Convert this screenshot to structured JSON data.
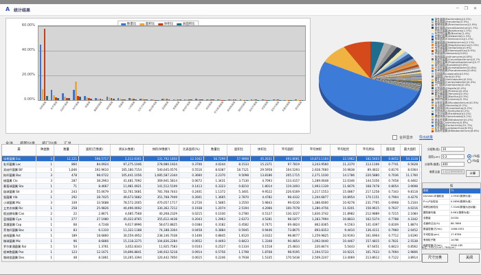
{
  "window": {
    "title": "统计结果",
    "logo": "A",
    "controls": {
      "minimize": "─",
      "maximize": "❐",
      "close": "✕"
    }
  },
  "toolbar": {
    "items": [
      "全选",
      "按图分类",
      "按门分类",
      "汇总"
    ],
    "checkbox_label": "合并显示",
    "export_link": "导出结果"
  },
  "chart_data": [
    {
      "type": "bar",
      "title": "",
      "ylabel": "",
      "ylim": [
        0,
        60
      ],
      "yticks": [
        "60.00%",
        "40.00%",
        "20.00%",
        "0.00%"
      ],
      "legend_position": "top",
      "categories": [
        "埃希菌属",
        "乳杆菌属",
        "双歧杆菌属",
        "拟杆菌属",
        "梭菌属",
        "葡萄球菌属",
        "链球菌属",
        "弧菌属",
        "小球菌属",
        "立克次体属",
        "假丝酵母属",
        "蓝细菌属",
        "荚膜菌属",
        "芽孢杆菌属",
        "放线菌属",
        "微球菌属",
        "罗尔斯通菌属",
        "假单胞菌属",
        "脱硫弧菌属",
        "硝化杆菌属",
        "奈瑟菌属",
        "变形杆菌属",
        "克雷伯菌属",
        "肠球菌属"
      ],
      "series": [
        {
          "name": "数量比",
          "color": "#4472c4",
          "values": [
            45.0,
            8.2,
            5.6,
            8.6,
            3.2,
            1.5,
            2.6,
            1.4,
            1.6,
            1.2,
            0.4,
            1.3,
            0.5,
            0.6,
            0.9,
            0.5,
            0.3,
            0.6,
            0.3,
            0.5,
            0.3,
            0.4,
            0.2,
            0.3
          ]
        },
        {
          "name": "面积比",
          "color": "#f0a830",
          "values": [
            8.9,
            4.1,
            2.9,
            15.2,
            2.4,
            1.1,
            2.2,
            1.0,
            1.3,
            0.9,
            0.3,
            1.1,
            0.4,
            0.5,
            0.8,
            0.4,
            0.3,
            0.5,
            0.2,
            0.4,
            0.3,
            0.3,
            0.2,
            0.2
          ]
        },
        {
          "name": "体积比",
          "color": "#c43e1c",
          "values": [
            57.9,
            2.2,
            1.8,
            3.4,
            1.5,
            0.9,
            1.6,
            0.8,
            1.0,
            0.7,
            0.2,
            0.9,
            0.3,
            0.4,
            0.6,
            0.3,
            0.2,
            0.4,
            0.2,
            0.3,
            0.2,
            0.3,
            0.1,
            0.2
          ]
        },
        {
          "name": "表面积比",
          "color": "#17748c",
          "values": [
            3.2,
            1.8,
            1.4,
            2.6,
            1.2,
            0.7,
            1.3,
            0.7,
            0.8,
            0.6,
            0.2,
            0.7,
            0.3,
            0.3,
            0.5,
            0.3,
            0.2,
            0.3,
            0.1,
            0.2,
            0.2,
            0.2,
            0.1,
            0.2
          ]
        }
      ]
    },
    {
      "type": "pie",
      "title": "",
      "legend_position": "right",
      "slices": [
        {
          "label": "拟杆菌属(Bacteroides)(4.3%)",
          "value": 4.3,
          "color": "#1f6d8c"
        },
        {
          "label": "普氏菌属(Prevotella)(2.5%)",
          "value": 2.5,
          "color": "#b0b0b0"
        },
        {
          "label": "瘤胃球菌属(Ruminococcus)(1.9%)",
          "value": 1.9,
          "color": "#8f8f8f"
        },
        {
          "label": "粪杆菌属(Faecalibacterium)(1.7%)",
          "value": 1.7,
          "color": "#2e3f5c"
        },
        {
          "label": "罗斯氏菌属(Roseburia)(1.5%)",
          "value": 1.5,
          "color": "#f0e6a8"
        },
        {
          "label": "布劳特氏菌属(Blautia)(1.4%)",
          "value": 1.4,
          "color": "#9dc3e6"
        },
        {
          "label": "克雷伯菌属(Klebsiella)(1.3%)",
          "value": 1.3,
          "color": "#3a66a8"
        },
        {
          "label": "肠球菌属(Enterococcus)(1.2%)",
          "value": 1.2,
          "color": "#24477e"
        },
        {
          "label": "链球菌属(Streptococcus)(1.1%)",
          "value": 1.1,
          "color": "#98a4ad"
        },
        {
          "label": "葡萄球菌属(Staphylococcus)(1.0%)",
          "value": 1.0,
          "color": "#e8832a"
        },
        {
          "label": "韦荣球菌属(Veillonella)(0.9%)",
          "value": 0.9,
          "color": "#c9a063"
        },
        {
          "label": "嗜血杆菌属(Haemophilus)(0.9%)",
          "value": 0.9,
          "color": "#b84a17"
        },
        {
          "label": "奈瑟菌属(Neisseria)(0.8%)",
          "value": 0.8,
          "color": "#a0a0a0"
        },
        {
          "label": "放线菌属(Actinomyces)(0.8%)",
          "value": 0.8,
          "color": "#d9d9d9"
        },
        {
          "label": "棒状杆菌属(Corynebacterium)(0.7%)",
          "value": 0.7,
          "color": "#6f6f6f"
        },
        {
          "label": "丙酸杆菌属(Propionibacterium)(0.7%)",
          "value": 0.7,
          "color": "#efd88f"
        },
        {
          "label": "莫拉菌属(Moraxella)(0.6%)",
          "value": 0.6,
          "color": "#8c9bab"
        },
        {
          "label": "不动杆菌属(Acinetobacter)(0.6%)",
          "value": 0.6,
          "color": "#d98f3c"
        },
        {
          "label": "假单胞菌属(Pseudomonas)(0.6%)",
          "value": 0.6,
          "color": "#5b80b2"
        },
        {
          "label": "军团菌属(Legionella)(0.5%)",
          "value": 0.5,
          "color": "#c4c4c4"
        },
        {
          "label": "弧菌属(Vibrio)(0.5%)",
          "value": 0.5,
          "color": "#747c88"
        },
        {
          "label": "螺杆菌属(Helicobacter)(0.5%)",
          "value": 0.5,
          "color": "#e8b84b"
        },
        {
          "label": "弯曲菌属(Campylobacter)(0.4%)",
          "value": 0.4,
          "color": "#4a6e96"
        },
        {
          "label": "沙门菌属(Salmonella)(0.4%)",
          "value": 0.4,
          "color": "#98722f"
        },
        {
          "label": "志贺菌属(Shigella)(0.4%)",
          "value": 0.4,
          "color": "#33567d"
        },
        {
          "label": "变形杆菌属(Proteus)(0.4%)",
          "value": 0.4,
          "color": "#ababab"
        },
        {
          "label": "耶尔森菌属(Yersinia)(0.3%)",
          "value": 0.3,
          "color": "#5e5e5e"
        },
        {
          "label": "芽孢杆菌属(Bacillus)(0.3%)",
          "value": 0.3,
          "color": "#d5d5d5"
        },
        {
          "label": "李斯特菌属(Listeria)(0.3%)",
          "value": 0.3,
          "color": "#8a6d3b"
        },
        {
          "label": "分枝杆菌属(Mycobacterium)(0.3%)",
          "value": 0.3,
          "color": "#6d8fc0"
        },
        {
          "label": "诺卡菌属(Nocardia)(0.2%)",
          "value": 0.2,
          "color": "#e59a4d"
        },
        {
          "label": "支原体属(Mycoplasma)(0.2%)",
          "value": 0.2,
          "color": "#3f7f8c"
        },
        {
          "label": "衣原体属(Chlamydia)(0.2%)",
          "value": 0.2,
          "color": "#bdbdbd"
        },
        {
          "label": "立克次体属(Rickettsia)(0.2%)",
          "value": 0.2,
          "color": "#2b4a6f"
        },
        {
          "label": "螺旋体属(Spirochaeta)(0.2%)",
          "value": 0.2,
          "color": "#d8c27a"
        },
        {
          "label": "硝化杆菌属(Nitrobacter)(0.2%)",
          "value": 0.2,
          "color": "#9b9b9b"
        },
        {
          "label": "梭菌属(Clostridium)(0.8%)",
          "value": 0.8,
          "color": "#7a8ca3"
        },
        {
          "label": "埃希菌属(Escherichia)(51.7%)",
          "value": 51.7,
          "color": "#3d7bd9"
        },
        {
          "label": "乳杆菌属(Lactobacillus)(8.9%)",
          "value": 8.9,
          "color": "#f0b342"
        },
        {
          "label": "双歧杆菌属(Bifidobacterium)(8.6%)",
          "value": 8.6,
          "color": "#d44a1a"
        }
      ]
    }
  ],
  "table": {
    "columns": [
      "属",
      "种类数",
      "数量",
      "面积(万像素)",
      "周长(k像素)",
      "体积(M像素³)",
      "比表面积(%)",
      "数量比",
      "面积比",
      "体积比",
      "平均面积",
      "平均体积",
      "平均粒径",
      "平均周长",
      "圆形度",
      "最大面积"
    ],
    "selected_index": 0,
    "rows": [
      [
        "埃希菌属 Esc",
        "3",
        "12,121",
        "598.5717",
        "2,212.6301",
        "131,792.1850",
        "12.1042",
        "56.7299",
        "57.9898",
        "45.2631",
        "493.8081",
        "10,873.1164",
        "22.1962",
        "182.5403",
        "0.8452",
        "54.3128"
      ],
      [
        "乳杆菌属 Lac",
        "1",
        "860",
        "84.0924",
        "97,275.1046",
        "278,980.1924",
        "0.3706",
        "4.0244",
        "8.1533",
        "15.2371",
        "97.7819",
        "3,243.9560",
        "11.2370",
        "113.1106",
        "0.7741",
        "6.5628"
      ],
      [
        "双歧杆菌属 Bif",
        "1",
        "1,846",
        "192.9610",
        "165,180.7154",
        "540,645.0576",
        "0.5516",
        "8.6387",
        "18.7121",
        "29.5958",
        "104.5293",
        "2,928.7660",
        "10.9838",
        "89.4832",
        "0.8176",
        "8.0364"
      ],
      [
        "拟杆菌属 Bac",
        "3",
        "478",
        "98.0722",
        "105,441.1056",
        "1,085,587.2344",
        "0.3660",
        "2.2370",
        "9.5098",
        "13.8186",
        "205.1715",
        "2,271.1030",
        "14.1786",
        "220.5880",
        "0.7036",
        "11.1760"
      ],
      [
        "梭菌属 Clo",
        "3",
        "287",
        "38.2903",
        "41,481.7092",
        "369,941.5814",
        "0.0672",
        "1.3431",
        "3.7130",
        "4.7093",
        "133.4157",
        "1,289.0648",
        "12.0346",
        "144.5356",
        "0.7458",
        "6.4462"
      ],
      [
        "葡萄球菌属 Sta",
        "1",
        "71",
        "8.4667",
        "11,981.0921",
        "141,512.5109",
        "0.1413",
        "0.3323",
        "0.8210",
        "1.8014",
        "119.2493",
        "1,993.1339",
        "11.6676",
        "168.7478",
        "0.8054",
        "3.9698"
      ],
      [
        "链球菌属 Str",
        "3",
        "243",
        "55.0679",
        "52,761.5681",
        "781,768.7443",
        "0.2401",
        "1.1372",
        "5.3401",
        "9.9522",
        "226.6169",
        "3,217.1553",
        "15.0867",
        "217.1258",
        "0.7343",
        "9.8118"
      ],
      [
        "弧菌属 Vib",
        "1",
        "292",
        "28.7425",
        "49,673.5882",
        "351,768.7949",
        "0.2601",
        "1.3665",
        "2.7870",
        "4.4782",
        "98.4332",
        "1,204.6877",
        "10.8954",
        "170.1151",
        "0.7904",
        "4.4276"
      ],
      [
        "小球菌属 Mic",
        "3",
        "339",
        "33.5688",
        "78,572.2005",
        "470,057.1717",
        "0.2726",
        "1.5865",
        "3.2550",
        "5.9843",
        "99.0230",
        "1,386.6000",
        "10.9278",
        "231.7765",
        "0.6908",
        "5.2104"
      ],
      [
        "立克次体属 Ric",
        "1",
        "258",
        "25.9826",
        "40,496.0692",
        "330,362.7212",
        "0.1938",
        "1.2074",
        "2.5194",
        "4.2066",
        "100.7078",
        "1,280.4756",
        "11.0201",
        "156.9615",
        "0.7637",
        "4.0216"
      ],
      [
        "假丝酵母属 Can",
        "2",
        "22",
        "2.8671",
        "4,685.7568",
        "40,268.2329",
        "0.0215",
        "0.1030",
        "0.2780",
        "0.5127",
        "130.3227",
        "1,830.3742",
        "11.8982",
        "212.9889",
        "0.7215",
        "2.1084"
      ],
      [
        "蓝细菌属 Cya",
        "1",
        "277",
        "27.1980",
        "45,022.8765",
        "355,612.4438",
        "0.2043",
        "1.2963",
        "2.6373",
        "4.5281",
        "98.1877",
        "1,283.7994",
        "10.8833",
        "162.5374",
        "0.7788",
        "4.3342"
      ],
      [
        "荚膜菌属 Cap",
        "1",
        "68",
        "4.7248",
        "9,617.8996",
        "58,672.8825",
        "0.0384",
        "0.3182",
        "0.4582",
        "0.7471",
        "69.4824",
        "862.8365",
        "9.1563",
        "141.4397",
        "0.8109",
        "1.8874"
      ],
      [
        "芽孢杆菌属 Bac",
        "1",
        "83",
        "6.1310",
        "11,322.1188",
        "74,188.3304",
        "0.0458",
        "0.3884",
        "0.5945",
        "0.9446",
        "73.8675",
        "893.8353",
        "9.4410",
        "136.4111",
        "0.7960",
        "2.0452"
      ],
      [
        "放线菌属 Act",
        "1",
        "189",
        "18.6860",
        "30,559.4952",
        "238,146.7038",
        "0.1406",
        "0.8845",
        "1.8120",
        "3.0322",
        "98.8677",
        "1,259.9825",
        "10.9193",
        "161.6904",
        "0.7712",
        "3.6190"
      ],
      [
        "微球菌属 Mic",
        "1",
        "96",
        "8.6866",
        "15,118.2275",
        "104,836.2284",
        "0.0652",
        "0.4493",
        "0.8423",
        "1.3348",
        "90.4854",
        "1,092.0440",
        "10.4467",
        "157.4815",
        "0.7831",
        "2.5538"
      ],
      [
        "罗尔斯通菌属 Ral",
        "1",
        "54",
        "1.3761",
        "3,652.8343",
        "11,925.7583",
        "0.0103",
        "0.2527",
        "0.1334",
        "0.1518",
        "25.4833",
        "220.8474",
        "5.5443",
        "67.6451",
        "0.8423",
        "0.8562"
      ],
      [
        "假单胞菌属 Pse",
        "1",
        "123",
        "12.1671",
        "19,896.8841",
        "146,932.5218",
        "0.0914",
        "0.5756",
        "1.1798",
        "1.8708",
        "98.9195",
        "1,194.5733",
        "10.9221",
        "161.7633",
        "0.7694",
        "2.9806"
      ],
      [
        "脱硫弧菌属 Des",
        "1",
        "48",
        "8.1861",
        "10,265.3394",
        "120,442.7850",
        "0.0615",
        "0.2246",
        "0.7938",
        "1.5335",
        "170.5438",
        "2,509.2247",
        "13.4069",
        "213.8612",
        "0.7122",
        "3.8914"
      ],
      [
        "硝化杆菌属 Nit",
        "1",
        "114",
        "11.2216",
        "18,334.0496",
        "133,940.5520",
        "0.0843",
        "0.5335",
        "1.0882",
        "1.7053",
        "98.4351",
        "1,174.9172",
        "10.8955",
        "160.8250",
        "0.7745",
        "2.8174"
      ],
      [
        "奈瑟菌属 Nei",
        "1",
        "57",
        "5.6527",
        "6,594.5001",
        "16,026.1169",
        "0.1045",
        "0.2668",
        "0.5481",
        "0.6841",
        "99.1702",
        "281.1599",
        "10.9360",
        "115.6930",
        "0.8251",
        "1.9966"
      ],
      [
        "变形杆菌属 Pro",
        "1",
        "90",
        "9.0590",
        "11,716.1338",
        "100,771.5002",
        "0.0892",
        "0.4224",
        "0.8784",
        "1.2830",
        "100.6556",
        "1,119.6833",
        "11.0172",
        "130.1793",
        "0.7863",
        "2.4402"
      ]
    ]
  },
  "params": {
    "fields": [
      {
        "label": "分组数(组)",
        "value": "10"
      },
      {
        "label": "组距(μm)",
        "value": "0.2"
      },
      {
        "label": "分辨率(像素)",
        "value": "400"
      },
      {
        "label": "像素当量",
        "value": "3.6229999999262",
        "readonly": true
      }
    ],
    "radios": [
      {
        "label": "c%值",
        "selected": true
      },
      {
        "label": "t%值",
        "selected": false
      }
    ],
    "calc_button": "计算"
  },
  "attr_table": {
    "header": "值",
    "selected_index": 0,
    "rows": [
      [
        "类别",
        "75"
      ],
      [
        "D(mean)中值粒径",
        "1.9530(推荐为准)"
      ],
      [
        "P=L/P比粒径",
        "0.4656(推荐为准)"
      ],
      [
        "体积加权粒径",
        "7.31e6(数值为近似值)"
      ],
      [
        "圆形度均值",
        "0.661(推荐为准)"
      ],
      [
        "总数量",
        "24334"
      ],
      [
        "总面积占比(%)",
        "88.7866"
      ],
      [
        "数量密度(万/mL)",
        "1466.0051"
      ],
      [
        "平均粒径(μm)",
        "17.6766"
      ],
      [
        "有效粒子数",
        "14788"
      ],
      [
        "体积密度(万/mL)",
        "2945.185"
      ]
    ]
  },
  "footer": {
    "calibration": "标定: 292(1/cm²)  786(μm)",
    "size_button": "尺寸分类",
    "close_button": "关闭"
  }
}
